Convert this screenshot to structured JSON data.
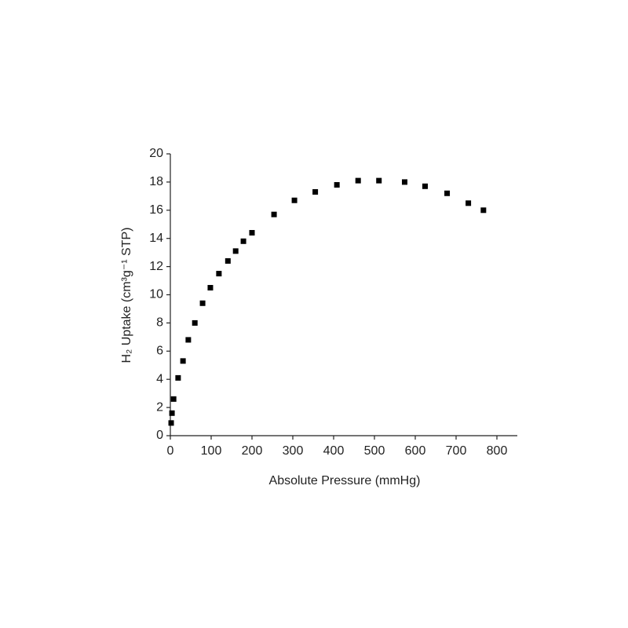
{
  "chart_data": {
    "type": "scatter",
    "xlabel": "Absolute Pressure (mmHg)",
    "ylabel": "H₂ Uptake (cm³g⁻¹ STP)",
    "series": [
      {
        "color": "#000000",
        "x": [
          2,
          4,
          8,
          19,
          31,
          44,
          60,
          79,
          98,
          119,
          141,
          160,
          179,
          200,
          254,
          304,
          355,
          408,
          460,
          511,
          574,
          624,
          678,
          730,
          767
        ],
        "values": [
          0.9,
          1.6,
          2.6,
          4.1,
          5.3,
          6.8,
          8.0,
          9.4,
          10.5,
          11.5,
          12.4,
          13.1,
          13.8,
          14.4,
          15.7,
          16.7,
          17.3,
          17.8,
          18.1,
          18.1,
          18.0,
          17.7,
          17.2,
          16.5,
          16.0
        ]
      }
    ],
    "xlim": [
      0,
      850
    ],
    "xticks": [
      0,
      100,
      200,
      300,
      400,
      500,
      600,
      700,
      800
    ],
    "ylim": [
      0,
      20
    ],
    "yticks": [
      0,
      2,
      4,
      6,
      8,
      10,
      12,
      14,
      16,
      18,
      20
    ]
  }
}
